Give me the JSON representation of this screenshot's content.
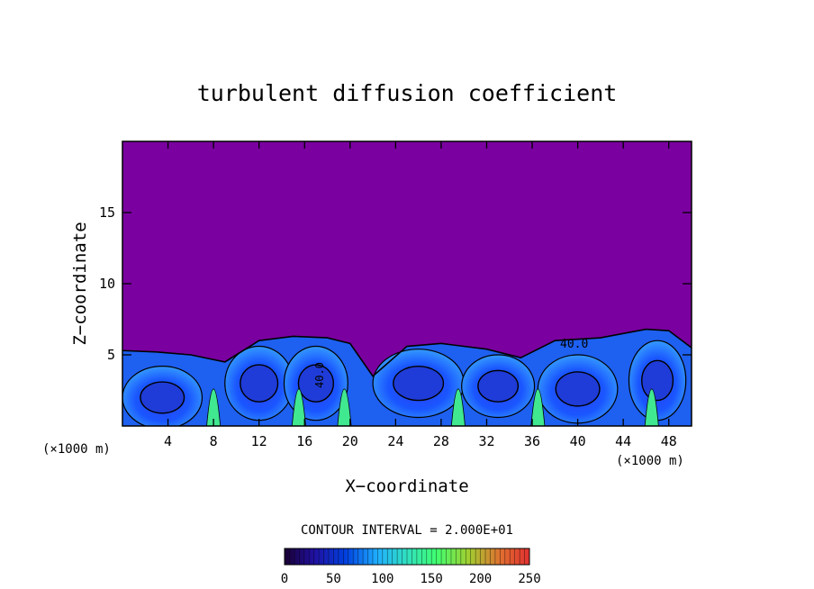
{
  "chart_data": {
    "type": "heatmap",
    "title": "turbulent diffusion coefficient",
    "xlabel": "X−coordinate",
    "ylabel": "Z−coordinate",
    "x_unit_left": "(×1000 m)",
    "x_unit_right": "(×1000 m)",
    "xlim": [
      0,
      50
    ],
    "ylim": [
      0,
      20
    ],
    "x_ticks": [
      "4",
      "8",
      "12",
      "16",
      "20",
      "24",
      "28",
      "32",
      "36",
      "40",
      "44",
      "48"
    ],
    "y_ticks": [
      "5",
      "10",
      "15"
    ],
    "contour_interval_text": "CONTOUR INTERVAL = 2.000E+01",
    "contour_labels": [
      "40.0",
      "40.0"
    ],
    "colorbar": {
      "min": 0,
      "max": 250,
      "ticks": [
        "0",
        "50",
        "100",
        "150",
        "200",
        "250"
      ]
    },
    "background_color": "#7a00a0",
    "field_description_values": {
      "boundary_layer_top_km": [
        5.3,
        5.2,
        5.0,
        4.5,
        6.0,
        6.3,
        6.2,
        5.8,
        3.5,
        5.6,
        5.8,
        5.4,
        4.8,
        6.0,
        6.2,
        6.8,
        6.7,
        5.5
      ],
      "boundary_layer_x_km": [
        0,
        3,
        6,
        9,
        12,
        15,
        18,
        20,
        22,
        25,
        28,
        32,
        35,
        38,
        42,
        46,
        48,
        50
      ]
    }
  }
}
